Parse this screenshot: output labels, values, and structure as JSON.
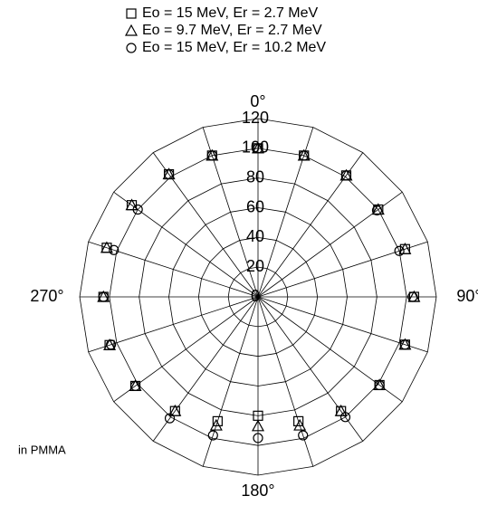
{
  "chart_data": {
    "type": "polar",
    "annotation": "in PMMA",
    "theta": [
      0,
      18,
      36,
      54,
      72,
      90,
      108,
      126,
      144,
      162,
      180,
      198,
      216,
      234,
      252,
      270,
      288,
      306,
      324,
      342
    ],
    "series": [
      {
        "name": "Eo = 15 MeV,  Er = 2.7 MeV",
        "marker": "square",
        "color": "#000000",
        "values": [
          100,
          100,
          101,
          100,
          104,
          105,
          104,
          101,
          95,
          88,
          80,
          88,
          95,
          102,
          105,
          104,
          107,
          105,
          102,
          100
        ]
      },
      {
        "name": "Eo = 9.7 MeV,  Er = 2.7 MeV",
        "marker": "triangle",
        "color": "#000000",
        "values": [
          100,
          100,
          101,
          100,
          104,
          105,
          104,
          101,
          95,
          91,
          87,
          91,
          95,
          102,
          105,
          104,
          107,
          105,
          102,
          100
        ]
      },
      {
        "name": "Eo = 15 MeV,  Er = 10.2 MeV",
        "marker": "circle",
        "color": "#000000",
        "values": [
          100,
          100,
          101,
          99,
          100,
          104,
          104,
          101,
          100,
          98,
          95,
          98,
          101,
          102,
          104,
          104,
          102,
          100,
          102,
          100
        ]
      }
    ],
    "rlim": [
      0,
      120
    ],
    "rticks": [
      0,
      20,
      40,
      60,
      80,
      100,
      120
    ],
    "thetaticks": [
      {
        "value": 0,
        "label": "0°"
      },
      {
        "value": 90,
        "label": "90°"
      },
      {
        "value": 180,
        "label": "180°"
      },
      {
        "value": 270,
        "label": "270°"
      }
    ]
  }
}
